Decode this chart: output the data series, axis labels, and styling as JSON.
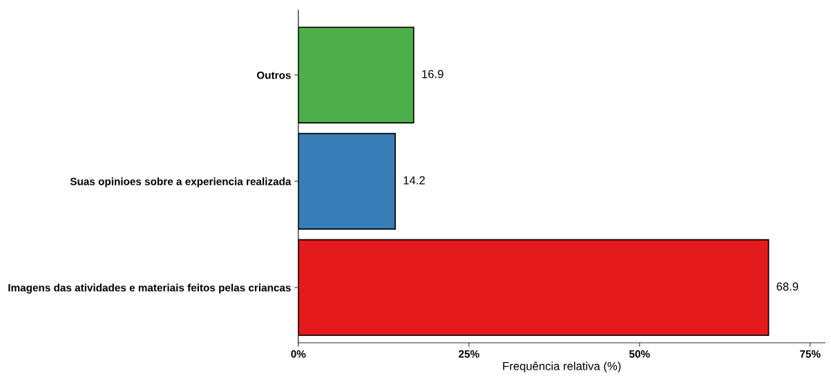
{
  "chart_data": {
    "type": "bar",
    "orientation": "horizontal",
    "xlabel": "Frequência relativa (%)",
    "categories": [
      "Outros",
      "Suas opinioes sobre a experiencia realizada",
      "Imagens das atividades e materiais feitos pelas criancas"
    ],
    "values": [
      16.9,
      14.2,
      68.9
    ],
    "colors": [
      "#4daf4a",
      "#377eb8",
      "#e41a1c"
    ],
    "xlim": [
      0,
      77.2
    ],
    "xticks": [
      {
        "value": 0,
        "label": "0%"
      },
      {
        "value": 25,
        "label": "25%"
      },
      {
        "value": 50,
        "label": "50%"
      },
      {
        "value": 75,
        "label": "75%"
      }
    ],
    "data_labels": true,
    "grid": false,
    "legend": false
  }
}
